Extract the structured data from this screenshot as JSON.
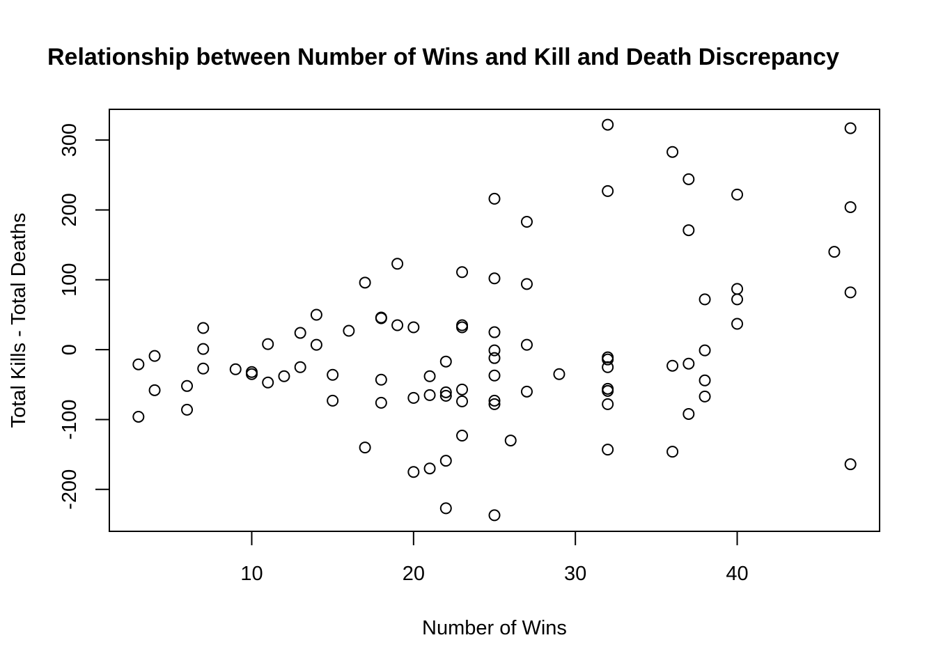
{
  "chart_data": {
    "type": "scatter",
    "title": "Relationship between Number of Wins and Kill and Death Discrepancy",
    "xlabel": "Number of Wins",
    "ylabel": "Total Kills - Total Deaths",
    "xlim": [
      1.2,
      48.8
    ],
    "ylim": [
      -260,
      344
    ],
    "x_ticks": [
      10,
      20,
      30,
      40
    ],
    "y_ticks": [
      -200,
      -100,
      0,
      100,
      200,
      300
    ],
    "x_tick_labels": [
      "10",
      "20",
      "30",
      "40"
    ],
    "y_tick_labels": [
      "-200",
      "-100",
      "0",
      "100",
      "200",
      "300"
    ],
    "grid": false,
    "legend": "none",
    "marker": "open-circle",
    "colors": {
      "background": "#ffffff",
      "foreground": "#000000"
    },
    "series": [
      {
        "points": [
          [
            3,
            -21
          ],
          [
            3,
            -96
          ],
          [
            4,
            -9
          ],
          [
            4,
            -58
          ],
          [
            6,
            -52
          ],
          [
            6,
            -86
          ],
          [
            7,
            31
          ],
          [
            7,
            1
          ],
          [
            7,
            -27
          ],
          [
            9,
            -28
          ],
          [
            10,
            -32
          ],
          [
            10,
            -35
          ],
          [
            11,
            8
          ],
          [
            11,
            -47
          ],
          [
            12,
            -38
          ],
          [
            13,
            24
          ],
          [
            13,
            -25
          ],
          [
            14,
            50
          ],
          [
            14,
            7
          ],
          [
            15,
            -36
          ],
          [
            15,
            -73
          ],
          [
            16,
            27
          ],
          [
            17,
            96
          ],
          [
            17,
            -140
          ],
          [
            18,
            46
          ],
          [
            18,
            45
          ],
          [
            18,
            -43
          ],
          [
            18,
            -76
          ],
          [
            19,
            123
          ],
          [
            19,
            35
          ],
          [
            20,
            32
          ],
          [
            20,
            -69
          ],
          [
            20,
            -175
          ],
          [
            21,
            -38
          ],
          [
            21,
            -65
          ],
          [
            21,
            -170
          ],
          [
            22,
            -17
          ],
          [
            22,
            -61
          ],
          [
            22,
            -66
          ],
          [
            22,
            -159
          ],
          [
            22,
            -227
          ],
          [
            23,
            111
          ],
          [
            23,
            35
          ],
          [
            23,
            32
          ],
          [
            23,
            -57
          ],
          [
            23,
            -74
          ],
          [
            23,
            -123
          ],
          [
            25,
            216
          ],
          [
            25,
            102
          ],
          [
            25,
            25
          ],
          [
            25,
            -1
          ],
          [
            25,
            -12
          ],
          [
            25,
            -37
          ],
          [
            25,
            -73
          ],
          [
            25,
            -78
          ],
          [
            25,
            -237
          ],
          [
            26,
            -130
          ],
          [
            27,
            183
          ],
          [
            27,
            94
          ],
          [
            27,
            7
          ],
          [
            27,
            -60
          ],
          [
            29,
            -35
          ],
          [
            32,
            322
          ],
          [
            32,
            227
          ],
          [
            32,
            -11
          ],
          [
            32,
            -14
          ],
          [
            32,
            -25
          ],
          [
            32,
            -56
          ],
          [
            32,
            -59
          ],
          [
            32,
            -78
          ],
          [
            32,
            -143
          ],
          [
            36,
            283
          ],
          [
            36,
            -23
          ],
          [
            36,
            -146
          ],
          [
            37,
            244
          ],
          [
            37,
            171
          ],
          [
            37,
            -20
          ],
          [
            37,
            -92
          ],
          [
            38,
            72
          ],
          [
            38,
            -1
          ],
          [
            38,
            -44
          ],
          [
            38,
            -67
          ],
          [
            40,
            222
          ],
          [
            40,
            87
          ],
          [
            40,
            72
          ],
          [
            40,
            37
          ],
          [
            46,
            140
          ],
          [
            47,
            317
          ],
          [
            47,
            204
          ],
          [
            47,
            82
          ],
          [
            47,
            -164
          ]
        ]
      }
    ]
  }
}
